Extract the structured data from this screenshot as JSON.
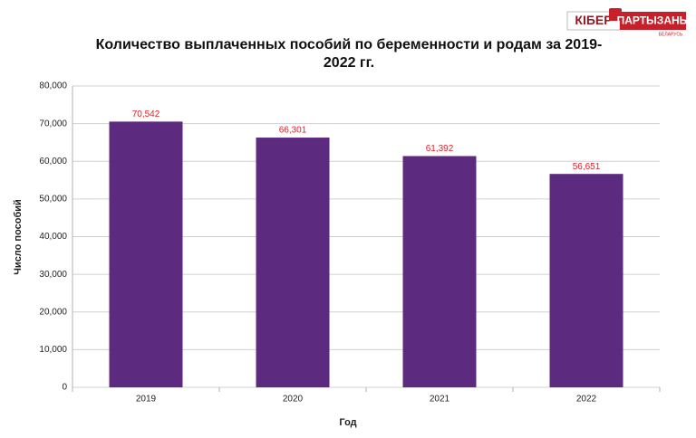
{
  "logo": {
    "left": "КІБЕР",
    "right": "ПАРТЫЗАНЫ",
    "sub": "БЕЛАРУСЬ"
  },
  "chart_data": {
    "type": "bar",
    "title": "Количество выплаченных пособий по беременности и родам за 2019-2022 гг.",
    "x_label": "Год",
    "y_label": "Число пособий",
    "categories": [
      "2019",
      "2020",
      "2021",
      "2022"
    ],
    "values": [
      70542,
      66301,
      61392,
      56651
    ],
    "value_labels": [
      "70,542",
      "66,301",
      "61,392",
      "56,651"
    ],
    "color": "#5c2a7e",
    "label_color": "#e0202a",
    "ylim": [
      0,
      80000
    ],
    "yticks": [
      0,
      {
        "value": 10000,
        "label": "10,000"
      },
      {
        "value": 20000,
        "label": "20,000"
      },
      {
        "value": 30000,
        "label": "30,000"
      },
      {
        "value": 40000,
        "label": "40,000"
      },
      {
        "value": 50000,
        "label": "50,000"
      },
      {
        "value": 60000,
        "label": "60,000"
      },
      {
        "value": 70000,
        "label": "70,000"
      },
      {
        "value": 80000,
        "label": "80,000"
      }
    ],
    "grid": true
  }
}
